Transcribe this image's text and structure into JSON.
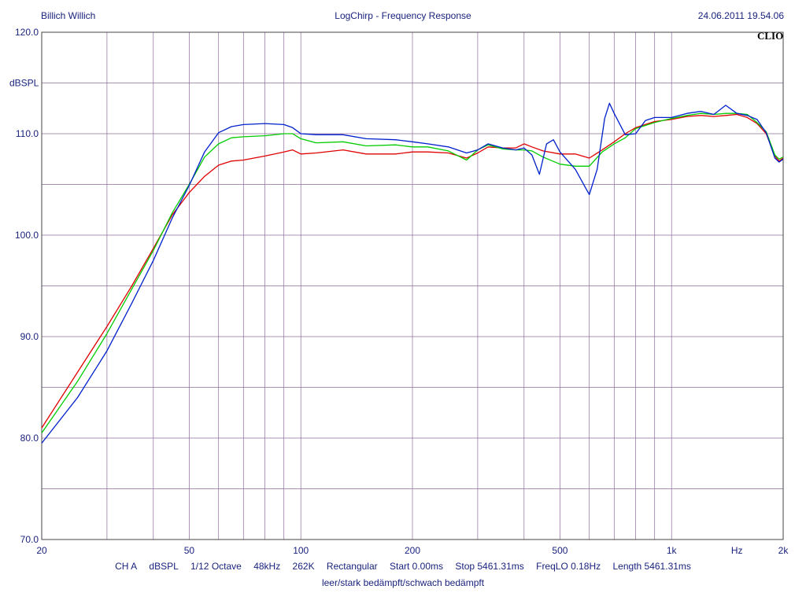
{
  "header": {
    "left": "Billich Willich",
    "center": "LogChirp - Frequency Response",
    "right": "24.06.2011 19.54.06"
  },
  "brand": "CLIO",
  "chart_data": {
    "type": "line",
    "title": "LogChirp - Frequency Response",
    "ylabel": "dBSPL",
    "xlabel": "Hz",
    "x_scale": "log",
    "xlim": [
      20,
      2000
    ],
    "ylim": [
      70,
      120
    ],
    "grid": true,
    "x_ticks": [
      {
        "value": 20,
        "label": "20"
      },
      {
        "value": 50,
        "label": "50"
      },
      {
        "value": 100,
        "label": "100"
      },
      {
        "value": 200,
        "label": "200"
      },
      {
        "value": 500,
        "label": "500"
      },
      {
        "value": 1000,
        "label": "1k"
      },
      {
        "value": 2000,
        "label": "2k"
      }
    ],
    "y_ticks": [
      {
        "value": 120,
        "label": "120.0"
      },
      {
        "value": 110,
        "label": "110.0"
      },
      {
        "value": 100,
        "label": "100.0"
      },
      {
        "value": 90,
        "label": "90.0"
      },
      {
        "value": 80,
        "label": "80.0"
      },
      {
        "value": 70,
        "label": "70.0"
      }
    ],
    "series": [
      {
        "color": "#e00000",
        "points": [
          [
            20,
            81.0
          ],
          [
            25,
            86.5
          ],
          [
            30,
            91.0
          ],
          [
            35,
            95.0
          ],
          [
            40,
            98.7
          ],
          [
            45,
            102.0
          ],
          [
            50,
            104.2
          ],
          [
            55,
            105.8
          ],
          [
            60,
            106.9
          ],
          [
            65,
            107.3
          ],
          [
            70,
            107.4
          ],
          [
            80,
            107.8
          ],
          [
            90,
            108.2
          ],
          [
            95,
            108.4
          ],
          [
            100,
            108.0
          ],
          [
            110,
            108.1
          ],
          [
            130,
            108.4
          ],
          [
            150,
            108.0
          ],
          [
            180,
            108.0
          ],
          [
            200,
            108.2
          ],
          [
            220,
            108.2
          ],
          [
            250,
            108.1
          ],
          [
            280,
            107.6
          ],
          [
            300,
            108.1
          ],
          [
            320,
            108.7
          ],
          [
            350,
            108.6
          ],
          [
            380,
            108.6
          ],
          [
            400,
            109.0
          ],
          [
            420,
            108.7
          ],
          [
            450,
            108.3
          ],
          [
            500,
            108.0
          ],
          [
            550,
            108.0
          ],
          [
            600,
            107.6
          ],
          [
            650,
            108.4
          ],
          [
            700,
            109.2
          ],
          [
            750,
            110.0
          ],
          [
            800,
            110.6
          ],
          [
            900,
            111.2
          ],
          [
            1000,
            111.4
          ],
          [
            1100,
            111.7
          ],
          [
            1200,
            111.8
          ],
          [
            1300,
            111.7
          ],
          [
            1400,
            111.8
          ],
          [
            1500,
            111.9
          ],
          [
            1600,
            111.6
          ],
          [
            1700,
            111.0
          ],
          [
            1800,
            110.0
          ],
          [
            1900,
            107.8
          ],
          [
            1950,
            107.3
          ],
          [
            2000,
            107.6
          ]
        ]
      },
      {
        "color": "#00cc00",
        "points": [
          [
            20,
            80.5
          ],
          [
            25,
            85.6
          ],
          [
            30,
            90.3
          ],
          [
            35,
            94.7
          ],
          [
            40,
            98.5
          ],
          [
            45,
            102.2
          ],
          [
            50,
            105.0
          ],
          [
            55,
            107.7
          ],
          [
            60,
            109.0
          ],
          [
            65,
            109.6
          ],
          [
            70,
            109.7
          ],
          [
            80,
            109.8
          ],
          [
            90,
            110.0
          ],
          [
            95,
            110.0
          ],
          [
            100,
            109.5
          ],
          [
            110,
            109.1
          ],
          [
            130,
            109.2
          ],
          [
            150,
            108.8
          ],
          [
            180,
            108.9
          ],
          [
            200,
            108.7
          ],
          [
            220,
            108.7
          ],
          [
            250,
            108.3
          ],
          [
            280,
            107.4
          ],
          [
            300,
            108.4
          ],
          [
            320,
            108.9
          ],
          [
            350,
            108.5
          ],
          [
            380,
            108.4
          ],
          [
            400,
            108.4
          ],
          [
            420,
            108.3
          ],
          [
            450,
            107.7
          ],
          [
            500,
            107.0
          ],
          [
            550,
            106.8
          ],
          [
            600,
            106.8
          ],
          [
            650,
            108.2
          ],
          [
            700,
            109.0
          ],
          [
            750,
            109.6
          ],
          [
            800,
            110.5
          ],
          [
            900,
            111.1
          ],
          [
            1000,
            111.5
          ],
          [
            1100,
            111.8
          ],
          [
            1200,
            112.0
          ],
          [
            1300,
            111.9
          ],
          [
            1400,
            112.0
          ],
          [
            1500,
            112.0
          ],
          [
            1600,
            111.9
          ],
          [
            1700,
            111.1
          ],
          [
            1800,
            110.2
          ],
          [
            1900,
            107.9
          ],
          [
            1950,
            107.5
          ],
          [
            2000,
            107.7
          ]
        ]
      },
      {
        "color": "#0020cc",
        "points": [
          [
            20,
            79.5
          ],
          [
            25,
            84.0
          ],
          [
            30,
            88.6
          ],
          [
            35,
            93.3
          ],
          [
            40,
            97.5
          ],
          [
            45,
            101.7
          ],
          [
            50,
            104.9
          ],
          [
            55,
            108.2
          ],
          [
            60,
            110.1
          ],
          [
            65,
            110.7
          ],
          [
            70,
            110.9
          ],
          [
            80,
            111.0
          ],
          [
            90,
            110.9
          ],
          [
            95,
            110.6
          ],
          [
            100,
            110.0
          ],
          [
            110,
            109.9
          ],
          [
            130,
            109.9
          ],
          [
            150,
            109.5
          ],
          [
            180,
            109.4
          ],
          [
            200,
            109.2
          ],
          [
            220,
            109.0
          ],
          [
            250,
            108.7
          ],
          [
            280,
            108.1
          ],
          [
            300,
            108.4
          ],
          [
            320,
            109.0
          ],
          [
            350,
            108.6
          ],
          [
            380,
            108.4
          ],
          [
            400,
            108.6
          ],
          [
            420,
            107.9
          ],
          [
            440,
            106.0
          ],
          [
            460,
            109.0
          ],
          [
            480,
            109.4
          ],
          [
            500,
            108.2
          ],
          [
            550,
            106.5
          ],
          [
            600,
            104.0
          ],
          [
            630,
            106.5
          ],
          [
            660,
            111.5
          ],
          [
            680,
            113.0
          ],
          [
            700,
            112.0
          ],
          [
            750,
            109.9
          ],
          [
            800,
            110.0
          ],
          [
            850,
            111.3
          ],
          [
            900,
            111.6
          ],
          [
            1000,
            111.6
          ],
          [
            1100,
            112.0
          ],
          [
            1200,
            112.2
          ],
          [
            1300,
            111.9
          ],
          [
            1400,
            112.8
          ],
          [
            1500,
            112.0
          ],
          [
            1600,
            111.8
          ],
          [
            1700,
            111.4
          ],
          [
            1800,
            110.1
          ],
          [
            1900,
            107.6
          ],
          [
            1950,
            107.2
          ],
          [
            2000,
            107.5
          ]
        ]
      }
    ]
  },
  "info": {
    "channel": "CH A",
    "unit": "dBSPL",
    "smoothing": "1/12 Octave",
    "rate": "48kHz",
    "fft": "262K",
    "window": "Rectangular",
    "start": "Start 0.00ms",
    "stop": "Stop 5461.31ms",
    "freqlo": "FreqLO 0.18Hz",
    "length": "Length 5461.31ms"
  },
  "legend_text": "leer/stark bedämpft/schwach bedämpft"
}
